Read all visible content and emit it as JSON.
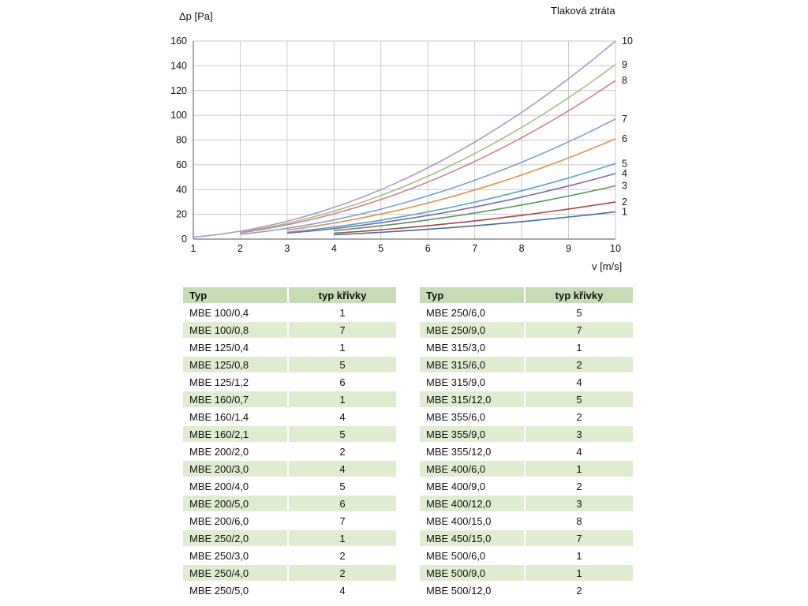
{
  "chart_data": {
    "type": "line",
    "title": "Tlaková ztráta",
    "ylabel": "Δp [Pa]",
    "xlabel": "v [m/s]",
    "xlim": [
      1,
      10
    ],
    "ylim": [
      0,
      160
    ],
    "x_ticks": [
      1,
      2,
      3,
      4,
      5,
      6,
      7,
      8,
      9,
      10
    ],
    "y_ticks": [
      0,
      20,
      40,
      60,
      80,
      100,
      120,
      140,
      160
    ],
    "grid": true,
    "legend_position": "right-edge-curve-numbers",
    "x": [
      1,
      2,
      3,
      4,
      5,
      6,
      7,
      8,
      9,
      10
    ],
    "series": [
      {
        "label": "10",
        "color": "#a89bcf",
        "y": [
          1.6,
          6.4,
          14.4,
          25.6,
          40.0,
          57.6,
          78.4,
          102.4,
          129.6,
          160
        ]
      },
      {
        "label": "9",
        "color": "#a2c178",
        "y": [
          null,
          5.6,
          12.7,
          22.6,
          35.3,
          50.8,
          69.1,
          90.2,
          114.2,
          141
        ]
      },
      {
        "label": "8",
        "color": "#d2808d",
        "y": [
          null,
          5.1,
          11.5,
          20.5,
          32.0,
          46.1,
          62.7,
          81.9,
          103.7,
          128
        ]
      },
      {
        "label": "7",
        "color": "#7b9fd4",
        "y": [
          null,
          3.9,
          8.7,
          15.5,
          24.3,
          34.9,
          47.5,
          62.1,
          78.6,
          97
        ]
      },
      {
        "label": "6",
        "color": "#dd9150",
        "y": [
          null,
          null,
          7.3,
          13.0,
          20.3,
          29.2,
          39.7,
          51.8,
          65.6,
          81
        ]
      },
      {
        "label": "5",
        "color": "#4fa8bf",
        "y": [
          null,
          null,
          5.5,
          9.8,
          15.3,
          22.0,
          29.9,
          39.0,
          49.4,
          61
        ]
      },
      {
        "label": "4",
        "color": "#7c66b4",
        "y": [
          null,
          null,
          4.8,
          8.5,
          13.3,
          19.1,
          26.0,
          33.9,
          42.9,
          53
        ]
      },
      {
        "label": "3",
        "color": "#56985c",
        "y": [
          null,
          null,
          null,
          6.9,
          10.8,
          15.5,
          21.1,
          27.5,
          34.8,
          43
        ]
      },
      {
        "label": "2",
        "color": "#a84444",
        "y": [
          null,
          null,
          null,
          4.8,
          7.5,
          10.8,
          14.7,
          19.2,
          24.3,
          30
        ]
      },
      {
        "label": "1",
        "color": "#3e6fa5",
        "y": [
          null,
          null,
          null,
          3.5,
          5.5,
          7.9,
          10.8,
          14.1,
          17.8,
          22
        ]
      }
    ]
  },
  "tables": [
    {
      "headers": [
        "Typ",
        "typ křivky"
      ],
      "rows": [
        [
          "MBE 100/0,4",
          "1"
        ],
        [
          "MBE 100/0,8",
          "7"
        ],
        [
          "MBE 125/0,4",
          "1"
        ],
        [
          "MBE 125/0,8",
          "5"
        ],
        [
          "MBE 125/1,2",
          "6"
        ],
        [
          "MBE 160/0,7",
          "1"
        ],
        [
          "MBE 160/1,4",
          "4"
        ],
        [
          "MBE 160/2,1",
          "5"
        ],
        [
          "MBE 200/2,0",
          "2"
        ],
        [
          "MBE 200/3,0",
          "4"
        ],
        [
          "MBE 200/4,0",
          "5"
        ],
        [
          "MBE 200/5,0",
          "6"
        ],
        [
          "MBE 200/6,0",
          "7"
        ],
        [
          "MBE 250/2,0",
          "1"
        ],
        [
          "MBE 250/3,0",
          "2"
        ],
        [
          "MBE 250/4,0",
          "2"
        ],
        [
          "MBE 250/5,0",
          "4"
        ]
      ]
    },
    {
      "headers": [
        "Typ",
        "typ křivky"
      ],
      "rows": [
        [
          "MBE 250/6,0",
          "5"
        ],
        [
          "MBE 250/9,0",
          "7"
        ],
        [
          "MBE 315/3,0",
          "1"
        ],
        [
          "MBE 315/6,0",
          "2"
        ],
        [
          "MBE 315/9,0",
          "4"
        ],
        [
          "MBE 315/12,0",
          "5"
        ],
        [
          "MBE 355/6,0",
          "2"
        ],
        [
          "MBE 355/9,0",
          "3"
        ],
        [
          "MBE 355/12,0",
          "4"
        ],
        [
          "MBE 400/6,0",
          "1"
        ],
        [
          "MBE 400/9,0",
          "2"
        ],
        [
          "MBE 400/12,0",
          "3"
        ],
        [
          "MBE 400/15,0",
          "8"
        ],
        [
          "MBE 450/15,0",
          "7"
        ],
        [
          "MBE 500/6,0",
          "1"
        ],
        [
          "MBE 500/9,0",
          "1"
        ],
        [
          "MBE 500/12,0",
          "2"
        ]
      ]
    }
  ]
}
